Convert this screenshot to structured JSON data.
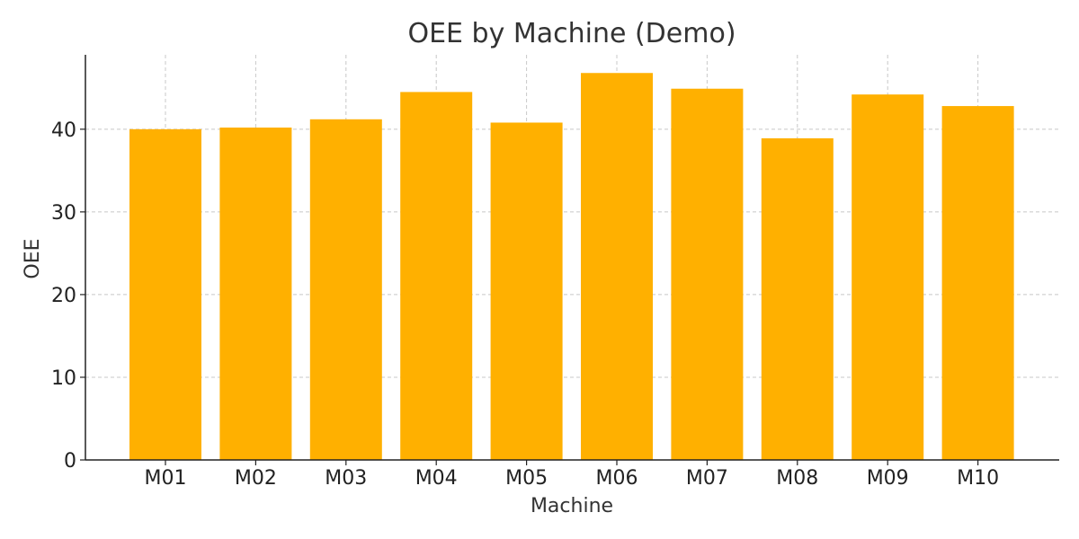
{
  "chart_data": {
    "type": "bar",
    "title": "OEE by Machine (Demo)",
    "xlabel": "Machine",
    "ylabel": "OEE",
    "categories": [
      "M01",
      "M02",
      "M03",
      "M04",
      "M05",
      "M06",
      "M07",
      "M08",
      "M09",
      "M10"
    ],
    "values": [
      40.0,
      40.2,
      41.2,
      44.5,
      40.8,
      46.8,
      44.9,
      38.9,
      44.2,
      42.8
    ],
    "ylim": [
      0,
      49
    ],
    "yticks": [
      0,
      10,
      20,
      30,
      40
    ],
    "grid": true,
    "bar_color": "#FFB000"
  }
}
